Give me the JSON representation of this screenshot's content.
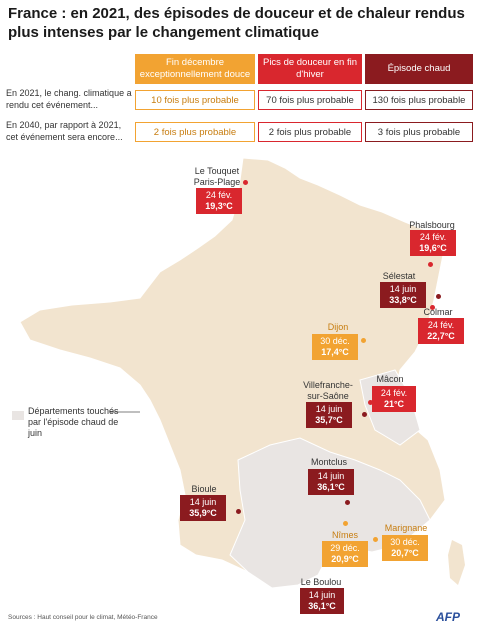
{
  "title": "France : en 2021, des épisodes de douceur et de chaleur rendus plus intenses par le changement climatique",
  "table": {
    "headers": [
      {
        "label": "Fin décembre exceptionnellement douce",
        "color": "#f2a332"
      },
      {
        "label": "Pics de douceur en fin d'hiver",
        "color": "#d9272e"
      },
      {
        "label": "Épisode chaud",
        "color": "#8b1b1f"
      }
    ],
    "rows": [
      {
        "label": "En 2021, le chang. climatique a rendu cet événement...",
        "values": [
          "10 fois plus probable",
          "70 fois plus probable",
          "130 fois plus probable"
        ]
      },
      {
        "label": "En 2040, par rapport à 2021, cet événement sera encore...",
        "values": [
          "2 fois plus probable",
          "2 fois plus probable",
          "3 fois plus probable"
        ]
      }
    ]
  },
  "colors": {
    "december": "#f2a332",
    "winter": "#d9272e",
    "heat": "#8b1b1f",
    "land": "#f2e4cf",
    "june_depts": "#e9e5e3"
  },
  "map": {
    "places": [
      {
        "name": "Le Touquet Paris-Plage",
        "date": "24 fév.",
        "temp": "19,3°C",
        "type": "winter"
      },
      {
        "name": "Phalsbourg",
        "date": "24 fév.",
        "temp": "19,6°C",
        "type": "winter"
      },
      {
        "name": "Sélestat",
        "date": "14 juin",
        "temp": "33,8°C",
        "type": "heat"
      },
      {
        "name": "Colmar",
        "date": "24 fév.",
        "temp": "22,7°C",
        "type": "winter"
      },
      {
        "name": "Dijon",
        "date": "30 déc.",
        "temp": "17,4°C",
        "type": "december"
      },
      {
        "name": "Mâcon",
        "date": "24 fév.",
        "temp": "21°C",
        "type": "winter"
      },
      {
        "name": "Villefranche-sur-Saône",
        "date": "14 juin",
        "temp": "35,7°C",
        "type": "heat"
      },
      {
        "name": "Montclus",
        "date": "14 juin",
        "temp": "36,1°C",
        "type": "heat"
      },
      {
        "name": "Bioule",
        "date": "14 juin",
        "temp": "35,9°C",
        "type": "heat"
      },
      {
        "name": "Nîmes",
        "date": "29 déc.",
        "temp": "20,9°C",
        "type": "december"
      },
      {
        "name": "Marignane",
        "date": "30 déc.",
        "temp": "20,7°C",
        "type": "december"
      },
      {
        "name": "Le Boulou",
        "date": "14 juin",
        "temp": "36,1°C",
        "type": "heat"
      }
    ]
  },
  "legend": "Départements touchés par l'épisode chaud de juin",
  "source": "Sources : Haut conseil pour le climat, Météo-France",
  "credit": "AFP"
}
